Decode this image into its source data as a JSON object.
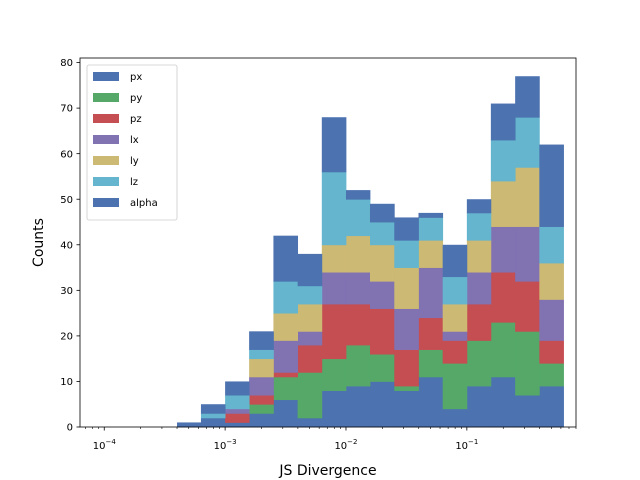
{
  "chart_data": {
    "type": "bar",
    "histtype": "stacked step-filled histogram",
    "title": "",
    "xlabel": "JS Divergence",
    "ylabel": "Counts",
    "xscale": "log",
    "xlim": [
      6.3e-05,
      0.8
    ],
    "ylim": [
      0,
      81
    ],
    "x_tick_labels": [
      {
        "value": 0.0001,
        "base": "10",
        "exp": "−4"
      },
      {
        "value": 0.001,
        "base": "10",
        "exp": "−3"
      },
      {
        "value": 0.01,
        "base": "10",
        "exp": "−2"
      },
      {
        "value": 0.1,
        "base": "10",
        "exp": "−1"
      }
    ],
    "y_ticks": [
      0,
      10,
      20,
      30,
      40,
      50,
      60,
      70,
      80
    ],
    "grid": false,
    "legend_position": "top-left",
    "bin_edges": [
      0.0004,
      0.000631,
      0.001,
      0.00158,
      0.00251,
      0.00398,
      0.00631,
      0.01,
      0.0158,
      0.0251,
      0.0398,
      0.0631,
      0.1,
      0.158,
      0.251,
      0.398,
      0.631
    ],
    "series": [
      {
        "name": "px",
        "color": "#4C72B0",
        "values": [
          1,
          2,
          1,
          3,
          6,
          2,
          8,
          9,
          10,
          8,
          11,
          4,
          9,
          11,
          7,
          9
        ]
      },
      {
        "name": "py",
        "color": "#55A868",
        "values": [
          0,
          0,
          0,
          2,
          5,
          10,
          7,
          9,
          6,
          1,
          6,
          10,
          10,
          12,
          14,
          5
        ]
      },
      {
        "name": "pz",
        "color": "#C44E52",
        "values": [
          0,
          0,
          2,
          2,
          1,
          6,
          12,
          9,
          10,
          8,
          7,
          5,
          8,
          11,
          11,
          5
        ]
      },
      {
        "name": "lx",
        "color": "#8172B2",
        "values": [
          0,
          0,
          1,
          4,
          7,
          3,
          7,
          7,
          6,
          9,
          11,
          2,
          7,
          10,
          12,
          9
        ]
      },
      {
        "name": "ly",
        "color": "#CCB974",
        "values": [
          0,
          0,
          0,
          4,
          6,
          6,
          6,
          8,
          8,
          9,
          6,
          6,
          7,
          10,
          13,
          8
        ]
      },
      {
        "name": "lz",
        "color": "#64B5CD",
        "values": [
          0,
          1,
          3,
          2,
          7,
          4,
          16,
          8,
          5,
          6,
          5,
          6,
          6,
          9,
          11,
          8
        ]
      },
      {
        "name": "alpha",
        "color": "#4C72B0",
        "values": [
          0,
          2,
          3,
          4,
          10,
          7,
          12,
          2,
          4,
          5,
          1,
          7,
          3,
          8,
          9,
          18
        ]
      }
    ]
  }
}
